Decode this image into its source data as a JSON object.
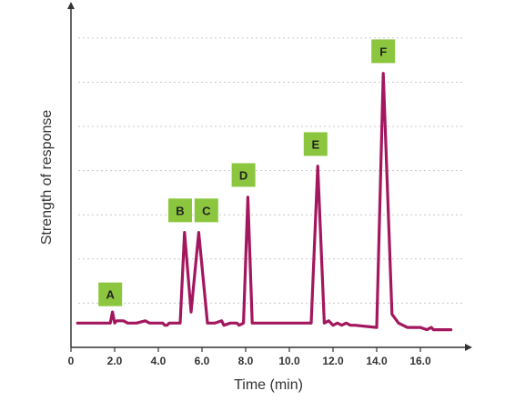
{
  "chart_data": {
    "type": "line",
    "xlabel": "Time (min)",
    "ylabel": "Strength of response",
    "xlim": [
      0,
      18
    ],
    "ylim": [
      0,
      8
    ],
    "x_ticks": [
      "0",
      "2.0",
      "4.0",
      "6.0",
      "8.0",
      "10.0",
      "12.0",
      "14.0",
      "16.0"
    ],
    "x_tick_values": [
      0,
      2,
      4,
      6,
      8,
      10,
      12,
      14,
      16
    ],
    "y_grid_values": [
      1,
      2,
      3,
      4,
      5,
      6,
      7,
      8
    ],
    "grid": "horizontal dashed",
    "line_color": "#a3175e",
    "label_color": "#8cc63f",
    "series": [
      {
        "x": [
          0.3,
          1.8,
          1.9,
          2.0,
          2.1,
          2.4,
          2.6,
          3.0,
          3.4,
          3.6,
          3.8,
          4.2,
          4.3,
          4.4,
          4.5,
          4.7,
          5.0,
          5.2,
          5.5,
          5.85,
          6.25,
          6.6,
          6.9,
          7.0,
          7.3,
          7.6,
          7.7,
          7.9,
          8.1,
          8.3,
          8.9,
          9.3,
          9.5,
          10.2,
          11.0,
          11.3,
          11.6,
          11.8,
          12.0,
          12.2,
          12.4,
          12.6,
          12.8,
          13.0,
          14.0,
          14.3,
          14.7,
          15.0,
          15.2,
          15.4,
          15.8,
          16.0,
          16.3,
          16.5,
          16.6,
          17.0,
          17.4
        ],
        "y": [
          0.55,
          0.55,
          0.8,
          0.55,
          0.6,
          0.6,
          0.55,
          0.55,
          0.6,
          0.55,
          0.55,
          0.55,
          0.5,
          0.5,
          0.55,
          0.55,
          0.55,
          2.6,
          0.8,
          2.6,
          0.55,
          0.55,
          0.6,
          0.5,
          0.55,
          0.55,
          0.5,
          0.55,
          3.4,
          0.55,
          0.55,
          0.55,
          0.55,
          0.55,
          0.55,
          4.1,
          0.55,
          0.6,
          0.5,
          0.55,
          0.5,
          0.55,
          0.5,
          0.5,
          0.45,
          6.2,
          0.75,
          0.55,
          0.5,
          0.45,
          0.45,
          0.45,
          0.4,
          0.45,
          0.4,
          0.4,
          0.4
        ]
      }
    ],
    "peak_labels": [
      {
        "text": "A",
        "x": 1.8,
        "y": 1.2
      },
      {
        "text": "B",
        "x": 5.0,
        "y": 3.1
      },
      {
        "text": "C",
        "x": 6.2,
        "y": 3.1
      },
      {
        "text": "D",
        "x": 7.9,
        "y": 3.9
      },
      {
        "text": "E",
        "x": 11.2,
        "y": 4.6
      },
      {
        "text": "F",
        "x": 14.3,
        "y": 6.7
      }
    ]
  }
}
